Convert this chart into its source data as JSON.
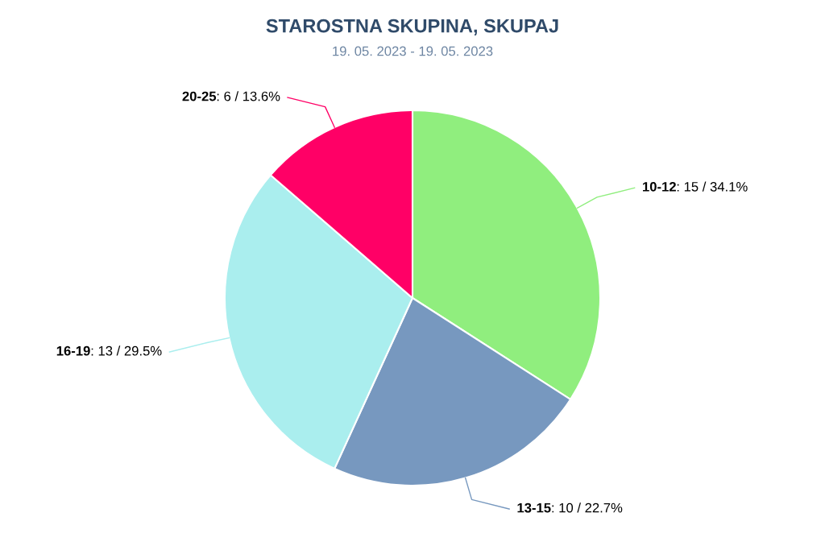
{
  "chart_data": {
    "type": "pie",
    "title": "STAROSTNA SKUPINA, SKUPAJ",
    "subtitle": "19. 05. 2023 - 19. 05. 2023",
    "categories": [
      "10-12",
      "13-15",
      "16-19",
      "20-25"
    ],
    "values": [
      15,
      10,
      13,
      6
    ],
    "colors": [
      "#90ee7e",
      "#7798bf",
      "#aaeeee",
      "#ff0066"
    ],
    "value_labels": [
      ": 15 / 34.1%",
      ": 10 / 22.7%",
      ": 13 / 29.5%",
      ": 6 / 13.6%"
    ],
    "legend": false
  }
}
